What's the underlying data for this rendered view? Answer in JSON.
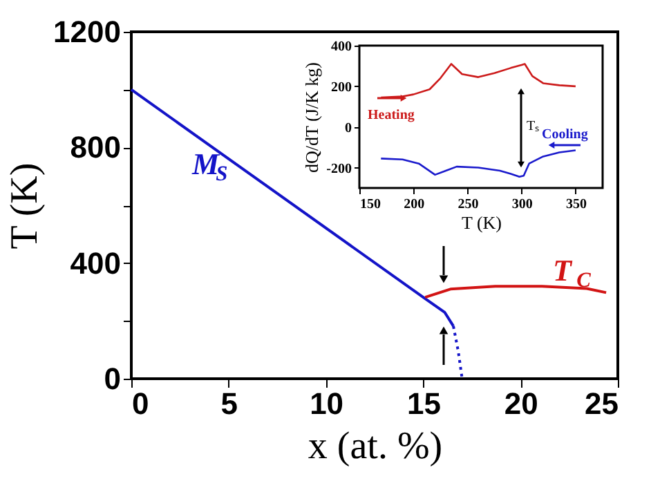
{
  "chart_data": [
    {
      "type": "line",
      "xlabel": "x (at. %)",
      "ylabel": "T (K)",
      "xlim": [
        0,
        25
      ],
      "ylim": [
        0,
        1200
      ],
      "xticks": [
        0,
        5,
        10,
        15,
        20,
        25
      ],
      "yticks": [
        0,
        {
          "value": 200,
          "label": null
        },
        400,
        {
          "value": 600,
          "label": null
        },
        800,
        {
          "value": 1000,
          "label": null
        },
        1200
      ],
      "grid": false,
      "line_style": "solid",
      "marker": "none",
      "series": [
        {
          "name": "M$_{S}$",
          "color": "#1414c8",
          "x": [
            0,
            15.1,
            16.1,
            16.55
          ],
          "values": [
            1000,
            277,
            230,
            182
          ]
        },
        {
          "color": "#1414c8",
          "line_style": "dotted",
          "x": [
            16.55,
            16.8,
            17.0
          ],
          "values": [
            182,
            95,
            0
          ]
        },
        {
          "name": "T$_{C}$",
          "color": "#d21414",
          "x": [
            15.1,
            16.4,
            18.7,
            21.1,
            23.4,
            24.4
          ],
          "values": [
            282,
            310,
            320,
            320,
            312,
            298
          ]
        }
      ]
    },
    {
      "type": "line",
      "xlabel": "T (K)",
      "ylabel": "dQ/dT (J/K kg)",
      "xlim": [
        150,
        375
      ],
      "ylim": [
        -300,
        400
      ],
      "xticks": [
        150,
        200,
        250,
        300,
        350
      ],
      "yticks": [
        -200,
        0,
        200,
        400
      ],
      "grid": false,
      "line_style": "solid",
      "marker": "none",
      "annotations": [
        "Heating",
        "Cooling",
        "Tₛ"
      ],
      "series": [
        {
          "color": "#cc1a1a",
          "x": [
            170,
            190,
            200,
            215,
            225,
            235,
            245,
            260,
            275,
            290,
            300,
            303,
            310,
            320,
            335,
            350
          ],
          "values": [
            145,
            150,
            160,
            185,
            240,
            310,
            260,
            245,
            265,
            290,
            305,
            310,
            250,
            215,
            205,
            200
          ]
        },
        {
          "color": "#1a1acc",
          "x": [
            170,
            190,
            205,
            220,
            230,
            240,
            260,
            280,
            290,
            298,
            302,
            307,
            320,
            335,
            350
          ],
          "values": [
            -155,
            -160,
            -180,
            -235,
            -215,
            -195,
            -200,
            -215,
            -230,
            -245,
            -240,
            -180,
            -145,
            -125,
            -115
          ]
        }
      ]
    }
  ]
}
